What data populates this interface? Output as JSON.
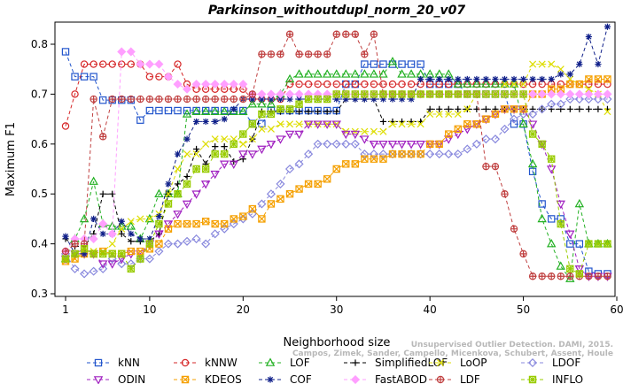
{
  "chart_data": {
    "type": "line",
    "title": "Parkinson_withoutdupl_norm_20_v07",
    "xlabel": "Neighborhood size",
    "ylabel": "Maximum F1",
    "xlim": [
      1,
      60
    ],
    "ylim": [
      0.3,
      0.85
    ],
    "x_ticks": [
      1,
      10,
      20,
      30,
      40,
      50,
      60
    ],
    "y_ticks": [
      0.3,
      0.4,
      0.5,
      0.6,
      0.7,
      0.8
    ],
    "x": [
      1,
      2,
      3,
      4,
      5,
      6,
      7,
      8,
      9,
      10,
      11,
      12,
      13,
      14,
      15,
      16,
      17,
      18,
      19,
      20,
      21,
      22,
      23,
      24,
      25,
      26,
      27,
      28,
      29,
      30,
      31,
      32,
      33,
      34,
      35,
      36,
      37,
      38,
      39,
      40,
      41,
      42,
      43,
      44,
      45,
      46,
      47,
      48,
      49,
      50,
      51,
      52,
      53,
      54,
      55,
      56,
      57,
      58,
      59
    ],
    "legend_position": "bottom",
    "grid": false,
    "series": [
      {
        "name": "kNN",
        "color": "#2255cc",
        "marker": "square",
        "values": [
          0.785,
          0.735,
          0.735,
          0.735,
          0.688,
          0.688,
          0.688,
          0.688,
          0.648,
          0.667,
          0.667,
          0.667,
          0.667,
          0.667,
          0.667,
          0.667,
          0.667,
          0.667,
          0.667,
          0.667,
          0.641,
          0.641,
          0.667,
          0.667,
          0.667,
          0.667,
          0.667,
          0.667,
          0.667,
          0.667,
          0.72,
          0.72,
          0.76,
          0.76,
          0.76,
          0.76,
          0.76,
          0.76,
          0.76,
          0.72,
          0.72,
          0.72,
          0.72,
          0.7,
          0.7,
          0.7,
          0.7,
          0.7,
          0.64,
          0.64,
          0.545,
          0.48,
          0.45,
          0.45,
          0.4,
          0.4,
          0.345,
          0.34,
          0.34
        ]
      },
      {
        "name": "kNNW",
        "color": "#d62728",
        "marker": "circle",
        "values": [
          0.636,
          0.7,
          0.76,
          0.76,
          0.76,
          0.76,
          0.76,
          0.76,
          0.76,
          0.735,
          0.735,
          0.735,
          0.76,
          0.72,
          0.71,
          0.71,
          0.71,
          0.71,
          0.71,
          0.71,
          0.69,
          0.69,
          0.69,
          0.69,
          0.72,
          0.72,
          0.72,
          0.72,
          0.72,
          0.72,
          0.72,
          0.72,
          0.72,
          0.72,
          0.72,
          0.72,
          0.72,
          0.72,
          0.72,
          0.72,
          0.72,
          0.72,
          0.72,
          0.72,
          0.72,
          0.72,
          0.72,
          0.72,
          0.72,
          0.72,
          0.72,
          0.72,
          0.72,
          0.72,
          0.72,
          0.72,
          0.72,
          0.72,
          0.72
        ]
      },
      {
        "name": "LOF",
        "color": "#22b022",
        "marker": "triangle-up",
        "values": [
          0.37,
          0.41,
          0.45,
          0.525,
          0.44,
          0.435,
          0.435,
          0.435,
          0.41,
          0.45,
          0.5,
          0.5,
          0.5,
          0.66,
          0.665,
          0.665,
          0.665,
          0.665,
          0.665,
          0.665,
          0.68,
          0.68,
          0.68,
          0.7,
          0.73,
          0.74,
          0.74,
          0.74,
          0.74,
          0.74,
          0.74,
          0.74,
          0.74,
          0.74,
          0.74,
          0.765,
          0.74,
          0.74,
          0.74,
          0.74,
          0.74,
          0.74,
          0.72,
          0.72,
          0.72,
          0.72,
          0.72,
          0.72,
          0.72,
          0.64,
          0.56,
          0.45,
          0.4,
          0.355,
          0.33,
          0.48,
          0.4,
          0.4,
          0.4
        ]
      },
      {
        "name": "SimplifiedLOF",
        "color": "#000000",
        "marker": "plus",
        "values": [
          0.41,
          0.395,
          0.395,
          0.42,
          0.5,
          0.5,
          0.42,
          0.405,
          0.405,
          0.405,
          0.42,
          0.5,
          0.52,
          0.535,
          0.59,
          0.56,
          0.595,
          0.595,
          0.565,
          0.57,
          0.61,
          0.665,
          0.665,
          0.665,
          0.665,
          0.665,
          0.665,
          0.665,
          0.665,
          0.665,
          0.69,
          0.69,
          0.69,
          0.69,
          0.645,
          0.645,
          0.645,
          0.645,
          0.645,
          0.67,
          0.67,
          0.67,
          0.67,
          0.67,
          0.67,
          0.67,
          0.67,
          0.67,
          0.67,
          0.67,
          0.67,
          0.67,
          0.67,
          0.67,
          0.67,
          0.67,
          0.67,
          0.67,
          0.67
        ]
      },
      {
        "name": "LoOP",
        "color": "#dddd00",
        "marker": "x",
        "values": [
          0.37,
          0.37,
          0.385,
          0.385,
          0.385,
          0.4,
          0.43,
          0.445,
          0.45,
          0.45,
          0.46,
          0.5,
          0.55,
          0.58,
          0.58,
          0.6,
          0.61,
          0.61,
          0.61,
          0.6,
          0.61,
          0.63,
          0.63,
          0.64,
          0.64,
          0.64,
          0.64,
          0.64,
          0.64,
          0.64,
          0.625,
          0.625,
          0.625,
          0.625,
          0.625,
          0.64,
          0.64,
          0.64,
          0.64,
          0.66,
          0.66,
          0.66,
          0.66,
          0.67,
          0.7,
          0.7,
          0.7,
          0.72,
          0.72,
          0.72,
          0.76,
          0.76,
          0.76,
          0.75,
          0.73,
          0.72,
          0.71,
          0.7,
          0.665
        ]
      },
      {
        "name": "LDOF",
        "color": "#8888dd",
        "marker": "diamond",
        "values": [
          0.38,
          0.35,
          0.34,
          0.345,
          0.35,
          0.37,
          0.36,
          0.36,
          0.37,
          0.37,
          0.385,
          0.4,
          0.4,
          0.405,
          0.41,
          0.4,
          0.42,
          0.43,
          0.44,
          0.45,
          0.46,
          0.48,
          0.5,
          0.52,
          0.55,
          0.56,
          0.58,
          0.6,
          0.6,
          0.6,
          0.6,
          0.6,
          0.58,
          0.58,
          0.58,
          0.58,
          0.58,
          0.58,
          0.58,
          0.58,
          0.58,
          0.58,
          0.58,
          0.59,
          0.6,
          0.61,
          0.61,
          0.63,
          0.65,
          0.66,
          0.66,
          0.67,
          0.68,
          0.68,
          0.69,
          0.69,
          0.69,
          0.69,
          0.69
        ]
      },
      {
        "name": "ODIN",
        "color": "#a020c0",
        "marker": "triangle-down",
        "values": [
          0.37,
          0.38,
          0.38,
          0.38,
          0.36,
          0.36,
          0.37,
          0.38,
          0.38,
          0.4,
          0.42,
          0.44,
          0.46,
          0.48,
          0.5,
          0.52,
          0.54,
          0.56,
          0.56,
          0.58,
          0.58,
          0.59,
          0.6,
          0.61,
          0.62,
          0.62,
          0.64,
          0.64,
          0.64,
          0.64,
          0.62,
          0.62,
          0.61,
          0.6,
          0.6,
          0.6,
          0.6,
          0.6,
          0.6,
          0.6,
          0.6,
          0.61,
          0.62,
          0.63,
          0.64,
          0.65,
          0.66,
          0.67,
          0.67,
          0.67,
          0.64,
          0.6,
          0.55,
          0.48,
          0.42,
          0.35,
          0.335,
          0.335,
          0.335
        ]
      },
      {
        "name": "KDEOS",
        "color": "#f5a000",
        "marker": "square-x",
        "values": [
          0.365,
          0.37,
          0.38,
          0.38,
          0.385,
          0.38,
          0.38,
          0.385,
          0.385,
          0.39,
          0.4,
          0.43,
          0.44,
          0.44,
          0.44,
          0.445,
          0.44,
          0.44,
          0.45,
          0.455,
          0.47,
          0.45,
          0.48,
          0.49,
          0.5,
          0.51,
          0.52,
          0.52,
          0.53,
          0.55,
          0.56,
          0.56,
          0.57,
          0.57,
          0.57,
          0.58,
          0.58,
          0.58,
          0.58,
          0.6,
          0.6,
          0.62,
          0.63,
          0.64,
          0.64,
          0.65,
          0.66,
          0.67,
          0.67,
          0.67,
          0.7,
          0.7,
          0.71,
          0.71,
          0.72,
          0.72,
          0.73,
          0.73,
          0.73
        ]
      },
      {
        "name": "COF",
        "color": "#10208a",
        "marker": "star",
        "values": [
          0.415,
          0.38,
          0.38,
          0.45,
          0.42,
          0.42,
          0.445,
          0.42,
          0.41,
          0.41,
          0.455,
          0.52,
          0.58,
          0.61,
          0.645,
          0.645,
          0.645,
          0.65,
          0.67,
          0.69,
          0.69,
          0.69,
          0.69,
          0.69,
          0.69,
          0.69,
          0.69,
          0.69,
          0.69,
          0.69,
          0.69,
          0.69,
          0.69,
          0.69,
          0.69,
          0.69,
          0.69,
          0.69,
          0.73,
          0.73,
          0.73,
          0.73,
          0.73,
          0.73,
          0.73,
          0.73,
          0.73,
          0.73,
          0.73,
          0.73,
          0.73,
          0.73,
          0.73,
          0.74,
          0.74,
          0.76,
          0.815,
          0.76,
          0.835
        ]
      },
      {
        "name": "FastABOD",
        "color": "#ff9fff",
        "marker": "diamond-filled",
        "values": [
          0.385,
          0.41,
          0.41,
          0.41,
          0.44,
          0.42,
          0.785,
          0.785,
          0.76,
          0.76,
          0.76,
          0.735,
          0.72,
          0.71,
          0.72,
          0.72,
          0.72,
          0.72,
          0.72,
          0.72,
          0.7,
          0.7,
          0.7,
          0.7,
          0.7,
          0.7,
          0.7,
          0.7,
          0.7,
          0.7,
          0.7,
          0.7,
          0.7,
          0.7,
          0.7,
          0.7,
          0.7,
          0.7,
          0.7,
          0.7,
          0.7,
          0.7,
          0.7,
          0.7,
          0.7,
          0.7,
          0.7,
          0.7,
          0.7,
          0.7,
          0.7,
          0.7,
          0.7,
          0.7,
          0.7,
          0.7,
          0.7,
          0.7,
          0.7
        ]
      },
      {
        "name": "LDF",
        "color": "#c04040",
        "marker": "circle-plus",
        "values": [
          0.385,
          0.4,
          0.4,
          0.69,
          0.615,
          0.69,
          0.69,
          0.69,
          0.69,
          0.69,
          0.69,
          0.69,
          0.69,
          0.69,
          0.69,
          0.69,
          0.69,
          0.69,
          0.69,
          0.69,
          0.7,
          0.78,
          0.78,
          0.78,
          0.82,
          0.78,
          0.78,
          0.78,
          0.78,
          0.82,
          0.82,
          0.82,
          0.78,
          0.82,
          0.7,
          0.7,
          0.7,
          0.7,
          0.7,
          0.7,
          0.7,
          0.7,
          0.7,
          0.7,
          0.7,
          0.555,
          0.555,
          0.5,
          0.43,
          0.38,
          0.335,
          0.335,
          0.335,
          0.335,
          0.335,
          0.335,
          0.335,
          0.335,
          0.335
        ]
      },
      {
        "name": "INFLO",
        "color": "#99cc00",
        "marker": "square-star",
        "values": [
          0.37,
          0.38,
          0.39,
          0.38,
          0.38,
          0.38,
          0.38,
          0.35,
          0.37,
          0.4,
          0.44,
          0.48,
          0.5,
          0.52,
          0.55,
          0.55,
          0.58,
          0.58,
          0.6,
          0.62,
          0.64,
          0.66,
          0.66,
          0.67,
          0.67,
          0.68,
          0.69,
          0.69,
          0.69,
          0.7,
          0.7,
          0.7,
          0.7,
          0.7,
          0.7,
          0.7,
          0.7,
          0.7,
          0.7,
          0.7,
          0.7,
          0.7,
          0.7,
          0.7,
          0.7,
          0.7,
          0.7,
          0.7,
          0.7,
          0.7,
          0.62,
          0.6,
          0.57,
          0.44,
          0.35,
          0.34,
          0.4,
          0.4,
          0.4
        ]
      }
    ],
    "watermark": [
      "Unsupervised Outlier Detection. DAMI, 2015.",
      "Campos, Zimek, Sander, Campello, Micenkova, Schubert, Assent, Houle"
    ]
  }
}
